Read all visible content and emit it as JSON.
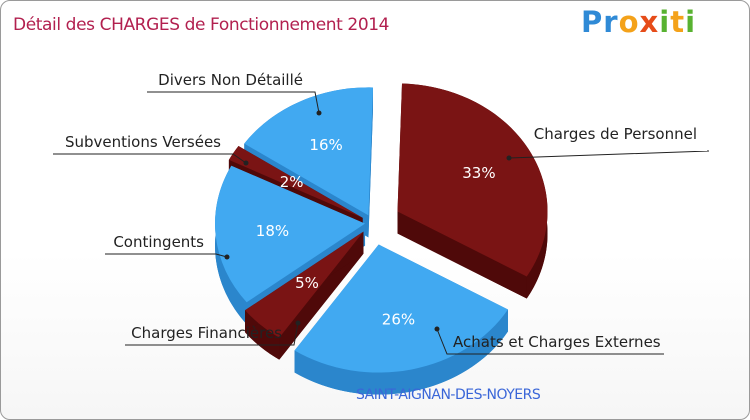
{
  "header": {
    "title": "Détail des CHARGES de Fonctionnement 2014",
    "brand": "Proxiti"
  },
  "footer": {
    "commune": "SAINT-AIGNAN-DES-NOYERS"
  },
  "colors": {
    "blue": "#41a9f1",
    "blue_side": "#2b86cc",
    "dark_red": "#7a1414",
    "dark_red_side": "#4f0909",
    "title": "#b2204f",
    "commune": "#3a66d8"
  },
  "chart_data": {
    "type": "pie",
    "title": "Détail des CHARGES de Fonctionnement 2014",
    "subtitle": "SAINT-AIGNAN-DES-NOYERS",
    "slices": [
      {
        "label": "Charges de Personnel",
        "value": 33,
        "display": "33%",
        "color": "#7a1414"
      },
      {
        "label": "Achats et Charges Externes",
        "value": 26,
        "display": "26%",
        "color": "#41a9f1"
      },
      {
        "label": "Charges Financières",
        "value": 5,
        "display": "5%",
        "color": "#7a1414"
      },
      {
        "label": "Contingents",
        "value": 18,
        "display": "18%",
        "color": "#41a9f1"
      },
      {
        "label": "Subventions Versées",
        "value": 2,
        "display": "2%",
        "color": "#7a1414"
      },
      {
        "label": "Divers Non Détaillé",
        "value": 16,
        "display": "16%",
        "color": "#41a9f1"
      }
    ]
  }
}
